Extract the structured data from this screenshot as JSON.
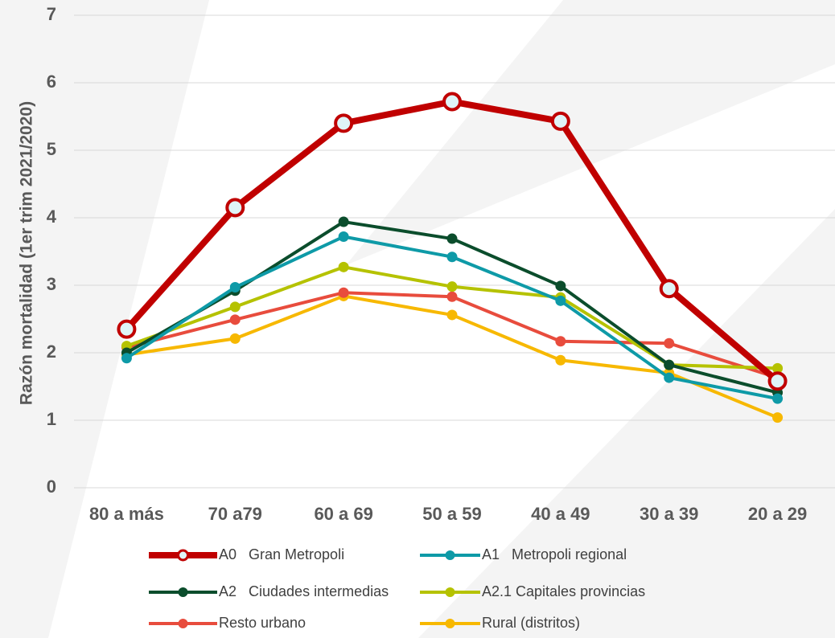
{
  "chart_data": {
    "type": "line",
    "y_label": "Razón mortalidad (1er trim 2021/2020)",
    "categories": [
      "80 a más",
      "70 a79",
      "60 a 69",
      "50 a 59",
      "40 a 49",
      "30 a 39",
      "20 a 29"
    ],
    "ylim": [
      0,
      7
    ],
    "yticks": [
      0,
      1,
      2,
      3,
      4,
      5,
      6,
      7
    ],
    "grid": true,
    "series": [
      {
        "name": "A0   Gran Metropoli",
        "color": "#c00000",
        "values": [
          2.35,
          4.15,
          5.4,
          5.72,
          5.43,
          2.95,
          1.58
        ]
      },
      {
        "name": "A1   Metropoli regional",
        "color": "#0e9aa7",
        "values": [
          1.92,
          2.97,
          3.72,
          3.42,
          2.77,
          1.63,
          1.32
        ]
      },
      {
        "name": "A2   Ciudades intermedias",
        "color": "#0b4d2c",
        "values": [
          2.0,
          2.92,
          3.94,
          3.69,
          2.99,
          1.82,
          1.41
        ]
      },
      {
        "name": "A2.1 Capitales provincias",
        "color": "#b5c200",
        "values": [
          2.1,
          2.68,
          3.27,
          2.98,
          2.82,
          1.82,
          1.77
        ]
      },
      {
        "name": "Resto urbano",
        "color": "#e84c3d",
        "values": [
          2.08,
          2.49,
          2.89,
          2.83,
          2.17,
          2.14,
          1.63
        ]
      },
      {
        "name": "Rural (distritos)",
        "color": "#f7b800",
        "values": [
          1.97,
          2.21,
          2.84,
          2.56,
          1.89,
          1.7,
          1.04
        ]
      }
    ]
  }
}
